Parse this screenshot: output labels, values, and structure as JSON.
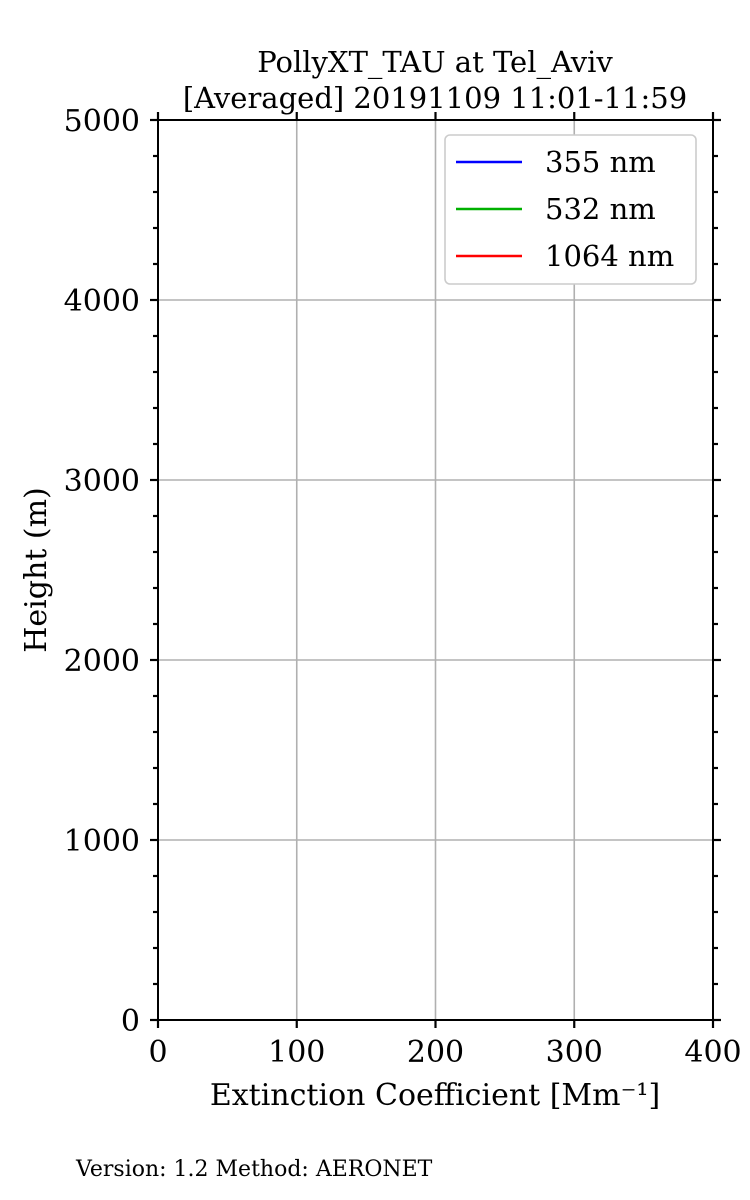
{
  "chart_data": {
    "type": "line",
    "title": [
      "PollyXT_TAU at Tel_Aviv",
      "[Averaged] 20191109 11:01-11:59"
    ],
    "xlabel": "Extinction Coefficient [Mm⁻¹]",
    "ylabel": "Height (m)",
    "xlim": [
      0,
      400
    ],
    "ylim": [
      0,
      5000
    ],
    "xticks": [
      "0",
      "100",
      "200",
      "300",
      "400"
    ],
    "yticks": [
      "0",
      "1000",
      "2000",
      "3000",
      "4000",
      "5000"
    ],
    "grid": true,
    "legend_position": "top-right",
    "series": [
      {
        "name": "355 nm",
        "color": "#0000ff",
        "x": [],
        "y": []
      },
      {
        "name": "532 nm",
        "color": "#00b000",
        "x": [],
        "y": []
      },
      {
        "name": "1064 nm",
        "color": "#ff0000",
        "x": [],
        "y": []
      }
    ]
  },
  "footer": "Version: 1.2  Method: AERONET"
}
